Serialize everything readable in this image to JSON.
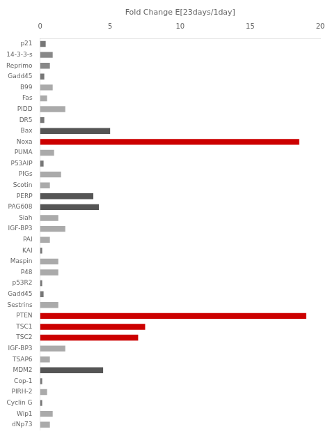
{
  "chart_data": {
    "type": "bar",
    "orientation": "horizontal",
    "categories": [
      "p21",
      "14-3-3-s",
      "Reprimo",
      "Gadd45",
      "B99",
      "Fas",
      "PIDD",
      "DR5",
      "Bax",
      "Noxa",
      "PUMA",
      "P53AIP",
      "PIGs",
      "Scotin",
      "PERP",
      "PAG608",
      "Siah",
      "IGF-BP3",
      "PAI",
      "KAI",
      "Maspin",
      "P48",
      "p53R2",
      "Gadd45",
      "Sestrins",
      "PTEN",
      "TSC1",
      "TSC2",
      "IGF-BP3",
      "TSAP6",
      "MDM2",
      "Cop-1",
      "PIRH-2",
      "Cyclin G",
      "Wip1",
      "dNp73"
    ],
    "values": [
      0.4,
      0.9,
      0.7,
      0.3,
      0.9,
      0.5,
      1.8,
      0.3,
      5.0,
      18.5,
      1.0,
      0.25,
      1.5,
      0.7,
      3.8,
      4.2,
      1.3,
      1.8,
      0.7,
      0.15,
      1.3,
      1.3,
      0.15,
      0.25,
      1.3,
      19.0,
      7.5,
      7.0,
      1.8,
      0.7,
      4.5,
      0.15,
      0.5,
      0.15,
      0.9,
      0.7
    ],
    "colors": [
      "#777777",
      "#888888",
      "#888888",
      "#777777",
      "#aaaaaa",
      "#aaaaaa",
      "#aaaaaa",
      "#777777",
      "#555555",
      "#cc0000",
      "#aaaaaa",
      "#777777",
      "#aaaaaa",
      "#aaaaaa",
      "#555555",
      "#555555",
      "#aaaaaa",
      "#aaaaaa",
      "#aaaaaa",
      "#777777",
      "#aaaaaa",
      "#aaaaaa",
      "#777777",
      "#777777",
      "#aaaaaa",
      "#cc0000",
      "#cc0000",
      "#cc0000",
      "#aaaaaa",
      "#aaaaaa",
      "#555555",
      "#777777",
      "#aaaaaa",
      "#777777",
      "#aaaaaa",
      "#aaaaaa"
    ],
    "x_label": "Fold Change E[23days/1day]",
    "xlim": [
      0,
      20
    ],
    "xticks": [
      0,
      5,
      10,
      15,
      20
    ],
    "grid": false
  }
}
